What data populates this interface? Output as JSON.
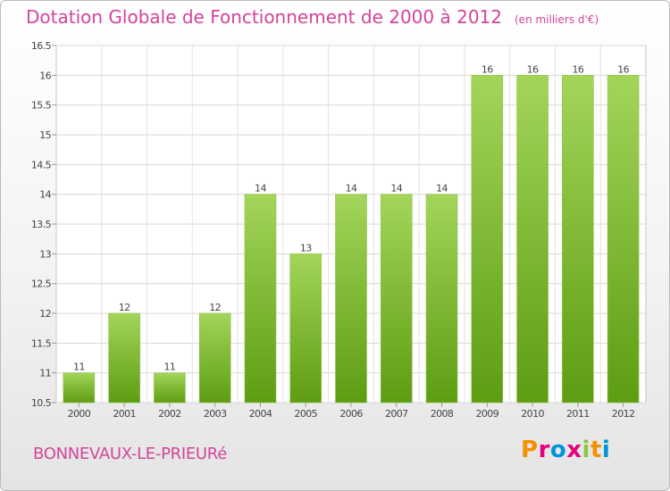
{
  "title": "Dotation Globale de Fonctionnement de 2000 à 2012",
  "unit": "(en milliers d'€)",
  "place": "BONNEVAUX-LE-PRIEURé",
  "logo_text": "Proxiti",
  "colors": {
    "title": "#d2459b",
    "bar_top": "#a3d55a",
    "bar_bottom": "#5d9d12"
  },
  "chart_data": {
    "type": "bar",
    "categories": [
      "2000",
      "2001",
      "2002",
      "2003",
      "2004",
      "2005",
      "2006",
      "2007",
      "2008",
      "2009",
      "2010",
      "2011",
      "2012"
    ],
    "values": [
      11,
      12,
      11,
      12,
      14,
      13,
      14,
      14,
      14,
      16,
      16,
      16,
      16
    ],
    "data_labels": [
      "11",
      "12",
      "11",
      "12",
      "14",
      "13",
      "14",
      "14",
      "14",
      "16",
      "16",
      "16",
      "16"
    ],
    "yticks": [
      "10.5",
      "11",
      "11.5",
      "12",
      "12.5",
      "13",
      "13.5",
      "14",
      "14.5",
      "15",
      "15.5",
      "16",
      "16.5"
    ],
    "ylim": [
      10.5,
      16.5
    ],
    "grid": true,
    "legend": "none"
  }
}
